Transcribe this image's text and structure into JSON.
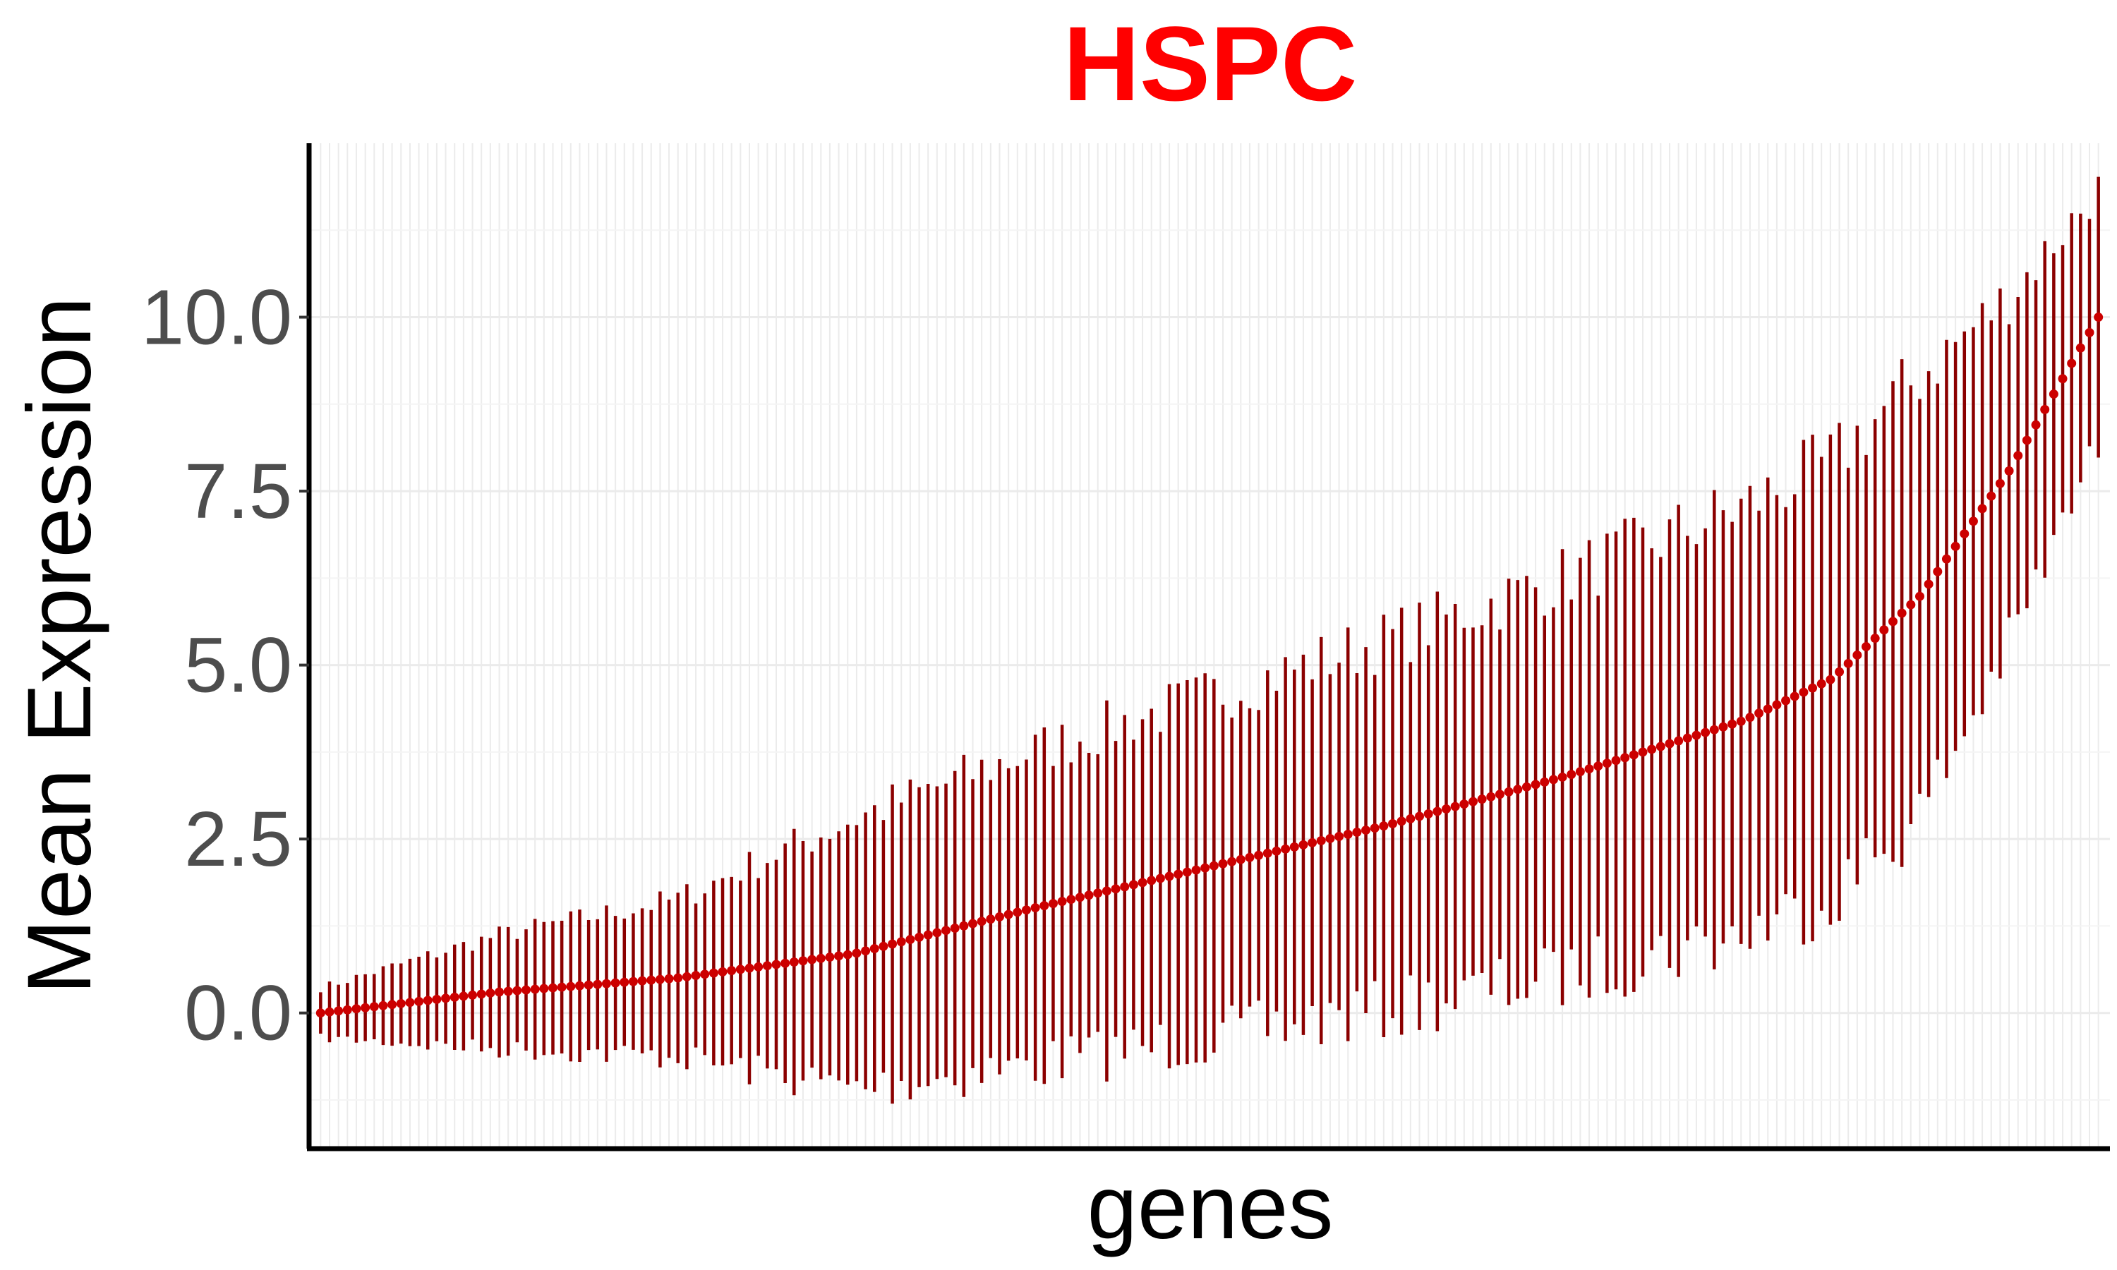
{
  "chart_data": {
    "type": "errorbar",
    "title": "HSPC",
    "xlabel": "genes",
    "ylabel": "Mean Expression",
    "y_ticks": [
      "0.0",
      "2.5",
      "5.0",
      "7.5",
      "10.0"
    ],
    "ylim": [
      -1.95,
      12.5
    ],
    "grid": true,
    "legend": "none",
    "colors": {
      "title": "#ff0000",
      "point": "#cc0000",
      "errorbar": "#8b0000",
      "grid_major": "#ebebeb",
      "grid_minor": "#f4f4f4",
      "axis": "#000000"
    },
    "n_genes": 200,
    "mean_curve": {
      "description_points": [
        [
          0,
          0.0
        ],
        [
          0.1,
          0.3
        ],
        [
          0.2,
          0.5
        ],
        [
          0.3,
          0.85
        ],
        [
          0.4,
          1.5
        ],
        [
          0.5,
          2.1
        ],
        [
          0.6,
          2.7
        ],
        [
          0.7,
          3.4
        ],
        [
          0.8,
          4.2
        ],
        [
          0.85,
          4.8
        ],
        [
          0.9,
          6.0
        ],
        [
          0.95,
          7.8
        ],
        [
          1.0,
          10.0
        ]
      ]
    },
    "errorbar_halfwidth": {
      "description_points": [
        [
          0,
          0.35
        ],
        [
          0.1,
          0.8
        ],
        [
          0.2,
          1.1
        ],
        [
          0.3,
          1.9
        ],
        [
          0.4,
          2.2
        ],
        [
          0.5,
          2.4
        ],
        [
          0.6,
          2.6
        ],
        [
          0.7,
          2.8
        ],
        [
          0.8,
          3.0
        ],
        [
          0.9,
          3.1
        ],
        [
          1.0,
          1.8
        ]
      ]
    }
  }
}
